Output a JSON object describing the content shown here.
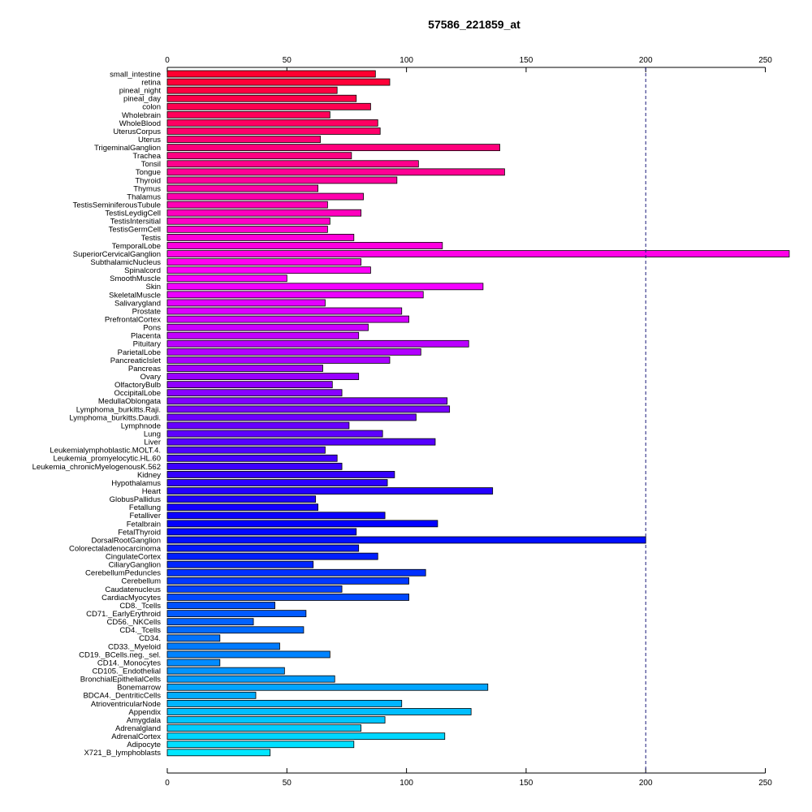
{
  "chart_data": {
    "type": "bar",
    "orientation": "horizontal",
    "title": "57586_221859_at",
    "xlabel": "",
    "ylabel": "",
    "xlim": [
      0,
      260
    ],
    "xticks": [
      0,
      50,
      100,
      150,
      200,
      250
    ],
    "axis_positions": [
      "top",
      "bottom"
    ],
    "reference_line": {
      "value": 200,
      "style": "dashed",
      "color": "#1a1a7a"
    },
    "categories": [
      "small_intestine",
      "retina",
      "pineal_night",
      "pineal_day",
      "colon",
      "Wholebrain",
      "WholeBlood",
      "UterusCorpus",
      "Uterus",
      "TrigeminalGanglion",
      "Trachea",
      "Tonsil",
      "Tongue",
      "Thyroid",
      "Thymus",
      "Thalamus",
      "TestisSeminiferousTubule",
      "TestisLeydigCell",
      "TestisIntersitial",
      "TestisGermCell",
      "Testis",
      "TemporalLobe",
      "SuperiorCervicalGanglion",
      "SubthalamicNucleus",
      "Spinalcord",
      "SmoothMuscle",
      "Skin",
      "SkeletalMuscle",
      "Salivarygland",
      "Prostate",
      "PrefrontalCortex",
      "Pons",
      "Placenta",
      "Pituitary",
      "ParietalLobe",
      "PancreaticIslet",
      "Pancreas",
      "Ovary",
      "OlfactoryBulb",
      "OccipitalLobe",
      "MedullaOblongata",
      "Lymphoma_burkitts.Raji.",
      "Lymphoma_burkitts.Daudi.",
      "Lymphnode",
      "Lung",
      "Liver",
      "Leukemialymphoblastic.MOLT.4.",
      "Leukemia_promyelocytic.HL.60",
      "Leukemia_chronicMyelogenousK.562",
      "Kidney",
      "Hypothalamus",
      "Heart",
      "GlobusPallidus",
      "Fetallung",
      "Fetalliver",
      "Fetalbrain",
      "FetalThyroid",
      "DorsalRootGanglion",
      "Colorectaladenocarcinoma",
      "CingulateCortex",
      "CiliaryGanglion",
      "CerebellumPeduncles",
      "Cerebellum",
      "Caudatenucleus",
      "CardiacMyocytes",
      "CD8._Tcells",
      "CD71._EarlyErythroid",
      "CD56._NKCells",
      "CD4._Tcells",
      "CD34.",
      "CD33._Myeloid",
      "CD19._BCells.neg._sel.",
      "CD14._Monocytes",
      "CD105._Endothelial",
      "BronchialEpithelialCells",
      "Bonemarrow",
      "BDCA4._DentriticCells",
      "AtrioventricularNode",
      "Appendix",
      "Amygdala",
      "Adrenalgland",
      "AdrenalCortex",
      "Adipocyte",
      "X721_B_lymphoblasts"
    ],
    "values": [
      87,
      93,
      71,
      79,
      85,
      68,
      88,
      89,
      64,
      139,
      77,
      105,
      141,
      96,
      63,
      82,
      67,
      81,
      68,
      67,
      78,
      115,
      260,
      81,
      85,
      50,
      132,
      107,
      66,
      98,
      101,
      84,
      80,
      126,
      106,
      93,
      65,
      80,
      69,
      73,
      117,
      118,
      104,
      76,
      90,
      112,
      66,
      71,
      73,
      95,
      92,
      136,
      62,
      63,
      91,
      113,
      79,
      200,
      80,
      88,
      61,
      108,
      101,
      73,
      101,
      45,
      58,
      36,
      57,
      22,
      47,
      68,
      22,
      49,
      70,
      134,
      37,
      98,
      127,
      91,
      81,
      116,
      78,
      43
    ],
    "colors": [
      "#ff0030",
      "#ff0038",
      "#ff0041",
      "#ff0049",
      "#ff0051",
      "#ff005a",
      "#ff0062",
      "#ff006a",
      "#ff0073",
      "#ff007b",
      "#ff0083",
      "#ff008c",
      "#ff0094",
      "#ff009c",
      "#ff00a5",
      "#ff00ad",
      "#ff00b5",
      "#ff00be",
      "#ff00c6",
      "#ff00ce",
      "#ff00d7",
      "#ff00df",
      "#ff00e7",
      "#ff00f0",
      "#ff00f8",
      "#fd00ff",
      "#f400ff",
      "#ec00ff",
      "#e400ff",
      "#db00ff",
      "#d300ff",
      "#cb00ff",
      "#c200ff",
      "#ba00ff",
      "#b200ff",
      "#a900ff",
      "#a100ff",
      "#9900ff",
      "#9000ff",
      "#8800ff",
      "#8000ff",
      "#7700ff",
      "#6f00ff",
      "#6700ff",
      "#5e00ff",
      "#5600ff",
      "#4e00ff",
      "#4500ff",
      "#3d00ff",
      "#3500ff",
      "#2c00ff",
      "#2400ff",
      "#1c00ff",
      "#1300ff",
      "#0b00ff",
      "#0300ff",
      "#0006ff",
      "#000eff",
      "#0017ff",
      "#001fff",
      "#0027ff",
      "#0030ff",
      "#0038ff",
      "#0041ff",
      "#0049ff",
      "#0051ff",
      "#005aff",
      "#0062ff",
      "#006aff",
      "#0073ff",
      "#007bff",
      "#0083ff",
      "#008cff",
      "#0094ff",
      "#009cff",
      "#00a5ff",
      "#00adff",
      "#00b5ff",
      "#00beff",
      "#00c6ff",
      "#00ceff",
      "#00d7ff",
      "#00dfff",
      "#00e7ff"
    ]
  }
}
